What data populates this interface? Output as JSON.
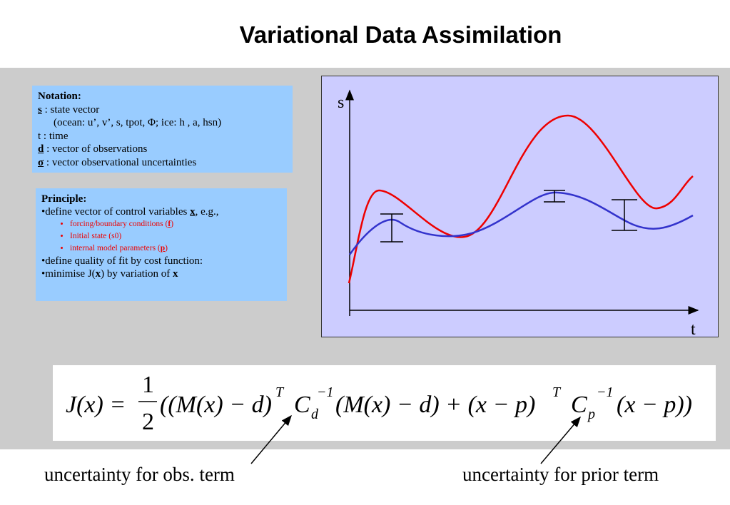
{
  "title": "Variational Data Assimilation",
  "notation": {
    "heading": "Notation:",
    "s_sym": "s",
    "s_text": " : state vector",
    "s_detail": "(ocean: u’, v’, s, tpot, Φ; ice: h , a, hsn)",
    "t_line": "t  : time",
    "d_sym": "d",
    "d_text": " : vector of observations",
    "sigma_sym": "σ",
    "sigma_text": " : vector observational uncertainties"
  },
  "principle": {
    "heading": "Principle:",
    "line1_pre": "•define vector of control variables ",
    "line1_sym": "x",
    "line1_post": ", e.g.,",
    "sub1_pre": "forcing/boundary conditions (",
    "sub1_sym": "f",
    "sub1_post": ")",
    "sub2": "Initial state (s0)",
    "sub3_pre": "internal model parameters (",
    "sub3_sym": "p",
    "sub3_post": ")",
    "line2": "•define quality of fit by cost function:",
    "line3_pre": "•minimise J(",
    "line3_sym": "x",
    "line3_mid": ") by variation of ",
    "line3_sym2": "x"
  },
  "plot": {
    "y_axis_label": "s",
    "x_axis_label": "t",
    "red_color": "#ee0000",
    "blue_color": "#3333cc"
  },
  "formula": {
    "lhs": "J(x) = ",
    "frac_num": "1",
    "frac_den": "2",
    "p1": "((M(x) − d)",
    "sup_T1": "T",
    "C1": "C",
    "sub_d": "d",
    "sup_inv1": "−1",
    "p2": " (M(x) − d) + (x − p)",
    "sup_T2": "T",
    "C2": "C",
    "sub_p": "p",
    "sup_inv2": "−1",
    "p3": " (x − p))"
  },
  "captions": {
    "obs": "uncertainty for obs. term",
    "prior": "uncertainty for prior term"
  }
}
